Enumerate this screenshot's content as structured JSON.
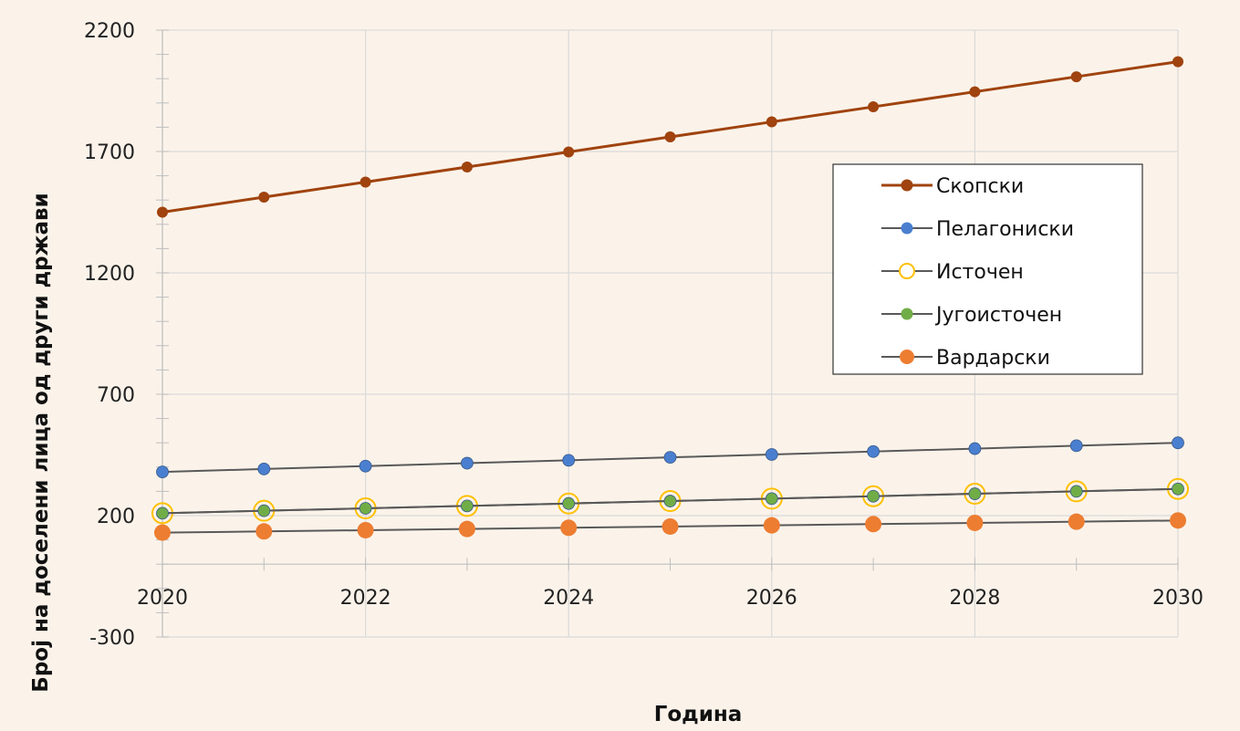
{
  "chart_data": {
    "type": "line",
    "title": "",
    "xlabel": "Година",
    "ylabel": "Број на доселени лица од други држави",
    "xlim": [
      2020,
      2030
    ],
    "ylim": [
      -300,
      2200
    ],
    "x_ticks": [
      2020,
      2022,
      2024,
      2026,
      2028,
      2030
    ],
    "y_ticks": [
      -300,
      200,
      700,
      1200,
      1700,
      2200
    ],
    "grid": true,
    "legend_position": "right",
    "x": [
      2020,
      2021,
      2022,
      2023,
      2024,
      2025,
      2026,
      2027,
      2028,
      2029,
      2030
    ],
    "series": [
      {
        "name": "Скопски",
        "color": "#a0430e",
        "marker": "filled-circle",
        "values": [
          1450,
          1512,
          1574,
          1636,
          1698,
          1760,
          1822,
          1884,
          1946,
          2008,
          2070
        ]
      },
      {
        "name": "Пелагониски",
        "color": "#4a7fd0",
        "marker": "filled-circle",
        "values": [
          380,
          392,
          404,
          416,
          428,
          440,
          452,
          464,
          476,
          488,
          500
        ]
      },
      {
        "name": "Источен",
        "color": "#ffc000",
        "marker": "hollow-circle",
        "values": [
          210,
          220,
          230,
          240,
          250,
          260,
          270,
          280,
          290,
          300,
          310
        ]
      },
      {
        "name": "Југоисточен",
        "color": "#70ad47",
        "marker": "filled-circle",
        "values": [
          210,
          220,
          230,
          240,
          250,
          260,
          270,
          280,
          290,
          300,
          310
        ]
      },
      {
        "name": "Вардарски",
        "color": "#ed7d31",
        "marker": "filled-circle",
        "values": [
          130,
          135,
          140,
          145,
          150,
          155,
          160,
          165,
          170,
          175,
          180
        ]
      }
    ]
  }
}
